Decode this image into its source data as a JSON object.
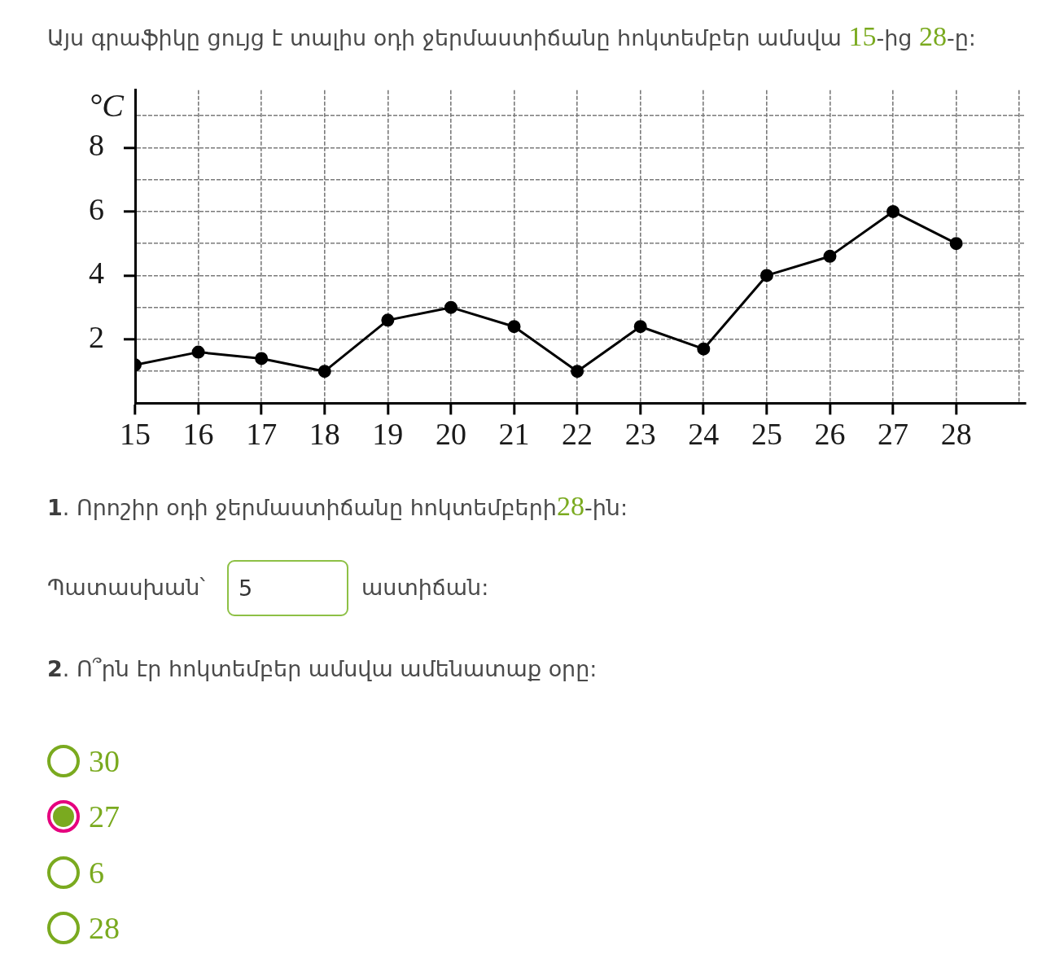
{
  "chart_data": {
    "type": "line",
    "title": "Այս գրաֆիկը ցույց է տալիս օդի ջերմաստիճանը հոկտեմբեր ամսվա 15-ից 28-ը:",
    "ylabel": "°C",
    "x": [
      15,
      16,
      17,
      18,
      19,
      20,
      21,
      22,
      23,
      24,
      25,
      26,
      27,
      28
    ],
    "series": [
      {
        "color": "#000000",
        "values": [
          1.2,
          1.6,
          1.4,
          1,
          2.6,
          3,
          2.4,
          1,
          2.4,
          1.7,
          4,
          4.6,
          6,
          5
        ]
      }
    ],
    "xlim": [
      15,
      29.1
    ],
    "ylim": [
      0,
      9.8
    ],
    "xticks": [
      15,
      16,
      17,
      18,
      19,
      20,
      21,
      22,
      23,
      24,
      25,
      26,
      27,
      28,
      {
        "value": 29,
        "label": null
      }
    ],
    "yticks": [
      {
        "value": 1,
        "label": null
      },
      2,
      {
        "value": 3,
        "label": null
      },
      4,
      {
        "value": 5,
        "label": null
      },
      6,
      {
        "value": 7,
        "label": null
      },
      8,
      {
        "value": 9,
        "label": null
      }
    ],
    "grid": true,
    "marker": "circle",
    "line_style": "solid",
    "annotations": [
      "1. Որոշիր օդի ջերմաստիճանը հոկտեմբերի28-ին:",
      "Պատասխան՝",
      "5",
      "աստիճան:",
      "2. Ո՞րն էր հոկտեմբեր ամսվա ամենատաք օրը:",
      "30",
      "27",
      "6",
      "28"
    ]
  }
}
